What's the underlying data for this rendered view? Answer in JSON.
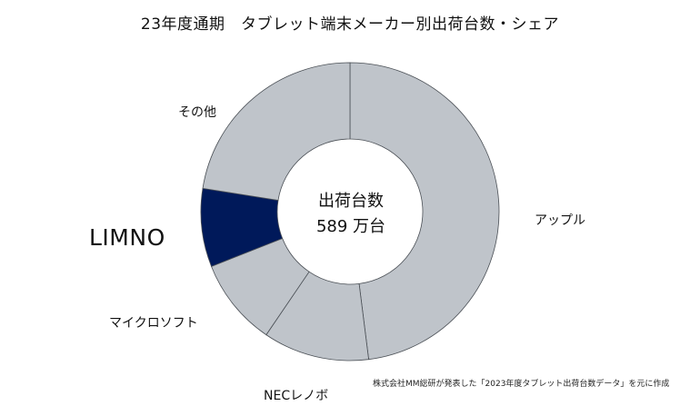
{
  "title": "23年度通期　タブレット端末メーカー別出荷台数・シェア",
  "center": {
    "line1": "出荷台数",
    "line2": "589 万台"
  },
  "source": "株式会社MM総研が発表した「2023年度タブレット出荷台数データ」を元に作成",
  "colors": {
    "default": "#bfc4ca",
    "highlight": "#00195a",
    "stroke": "#4a4f55"
  },
  "chart_data": {
    "type": "pie",
    "title": "23年度通期　タブレット端末メーカー別出荷台数・シェア",
    "total_label": "589 万台",
    "slices": [
      {
        "label": "アップル",
        "value": 48.0,
        "highlight": false
      },
      {
        "label": "NECレノボ",
        "value": 11.5,
        "highlight": false
      },
      {
        "label": "マイクロソフト",
        "value": 9.5,
        "highlight": false
      },
      {
        "label": "LIMNO",
        "value": 8.5,
        "highlight": true
      },
      {
        "label": "その他",
        "value": 22.5,
        "highlight": false
      }
    ]
  }
}
